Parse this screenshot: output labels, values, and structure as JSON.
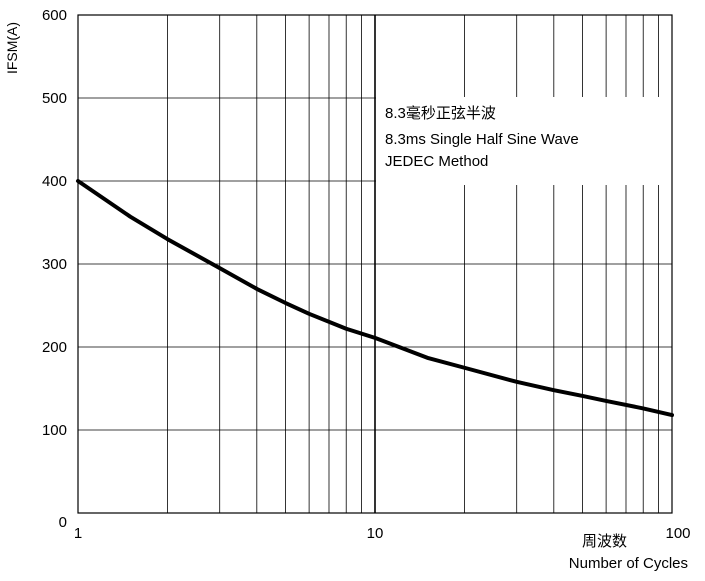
{
  "chart_data": {
    "type": "line",
    "xscale": "log",
    "xlim": [
      1,
      100
    ],
    "ylim": [
      0,
      600
    ],
    "ylabel": "IFSM(A)",
    "xlabel_cn": "周波数",
    "xlabel": "Number of Cycles",
    "x_ticks": [
      {
        "value": 1,
        "label": "1"
      },
      {
        "value": 10,
        "label": "10"
      },
      {
        "value": 100,
        "label": "100"
      }
    ],
    "y_ticks": [
      {
        "value": 0,
        "label": "0"
      },
      {
        "value": 100,
        "label": "100"
      },
      {
        "value": 200,
        "label": "200"
      },
      {
        "value": 300,
        "label": "300"
      },
      {
        "value": 400,
        "label": "400"
      },
      {
        "value": 500,
        "label": "500"
      },
      {
        "value": 600,
        "label": "600"
      }
    ],
    "annotation": {
      "lines": [
        "8.3毫秒正弦半波",
        "8.3ms Single Half Sine Wave",
        "JEDEC Method"
      ]
    },
    "grid": true,
    "series": [
      {
        "x": [
          1,
          1.5,
          2,
          3,
          4,
          5,
          6,
          8,
          10,
          15,
          20,
          30,
          40,
          50,
          60,
          80,
          100
        ],
        "values": [
          400,
          357,
          330,
          295,
          270,
          253,
          240,
          222,
          211,
          187,
          175,
          158,
          148,
          141,
          135,
          126,
          118
        ],
        "color": "#000000"
      }
    ]
  }
}
